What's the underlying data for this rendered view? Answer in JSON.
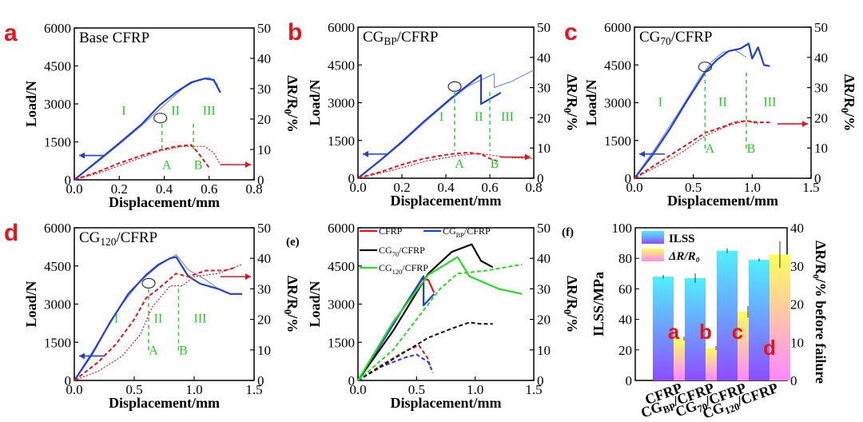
{
  "colors": {
    "blue": "#1f3fd8",
    "red": "#e8141c",
    "black": "#111111",
    "green": "#22dd22",
    "mid_green": "#33cc33",
    "axis": "#000000",
    "grad_top": "#4ff0ff",
    "grad_bottom": "#8c4dff",
    "pink_top": "#ffff55",
    "pink_bottom": "#ff88ff"
  },
  "common": {
    "xlabel": "Displacement/mm",
    "ylabel": "Load/N",
    "y2label": "ΔR/R₀/%"
  },
  "panels": [
    {
      "letter": "a",
      "title": "Base CFRP",
      "xlim": [
        0,
        0.8
      ],
      "xticks": [
        "0.0",
        "0.2",
        "0.4",
        "0.6",
        "0.8"
      ],
      "ylim": [
        0,
        6000
      ],
      "yticks": [
        "0",
        "1500",
        "3000",
        "4500",
        "6000"
      ],
      "y2lim": [
        0,
        50
      ],
      "y2ticks": [
        "0",
        "10",
        "20",
        "30",
        "40",
        "50"
      ],
      "regions": [
        "I",
        "II",
        "III"
      ],
      "points": [
        "A",
        "B"
      ],
      "load_main": [
        [
          0,
          0
        ],
        [
          0.1,
          720
        ],
        [
          0.2,
          1450
        ],
        [
          0.3,
          2200
        ],
        [
          0.38,
          2950
        ],
        [
          0.45,
          3450
        ],
        [
          0.52,
          3850
        ],
        [
          0.58,
          4000
        ],
        [
          0.62,
          3950
        ],
        [
          0.65,
          3450
        ]
      ],
      "load_second": [
        [
          0,
          0
        ],
        [
          0.1,
          680
        ],
        [
          0.2,
          1400
        ],
        [
          0.3,
          2150
        ],
        [
          0.4,
          2950
        ],
        [
          0.48,
          3600
        ],
        [
          0.55,
          3950
        ],
        [
          0.6,
          4050
        ],
        [
          0.64,
          3750
        ]
      ],
      "dr_main": [
        [
          0,
          0
        ],
        [
          0.1,
          2.5
        ],
        [
          0.2,
          5.5
        ],
        [
          0.3,
          8
        ],
        [
          0.38,
          9.8
        ],
        [
          0.45,
          11
        ],
        [
          0.52,
          11.5
        ],
        [
          0.55,
          9
        ],
        [
          0.58,
          6
        ],
        [
          0.6,
          4
        ]
      ],
      "dr_second": [
        [
          0,
          0
        ],
        [
          0.12,
          2.5
        ],
        [
          0.25,
          6
        ],
        [
          0.38,
          9.5
        ],
        [
          0.48,
          11
        ],
        [
          0.58,
          11
        ],
        [
          0.62,
          9
        ],
        [
          0.65,
          5
        ]
      ]
    },
    {
      "letter": "b",
      "title": "CG",
      "title_sub": "BP",
      "title_tail": "/CFRP",
      "xlim": [
        0,
        0.8
      ],
      "xticks": [
        "0.0",
        "0.2",
        "0.4",
        "0.6",
        "0.8"
      ],
      "ylim": [
        0,
        6000
      ],
      "yticks": [
        "0",
        "1500",
        "3000",
        "4500",
        "6000"
      ],
      "y2lim": [
        0,
        50
      ],
      "y2ticks": [
        "0",
        "10",
        "20",
        "30",
        "40",
        "50"
      ],
      "regions": [
        "I",
        "II",
        "III"
      ],
      "points": [
        "A",
        "B"
      ],
      "load_main": [
        [
          0,
          0
        ],
        [
          0.1,
          700
        ],
        [
          0.2,
          1450
        ],
        [
          0.3,
          2250
        ],
        [
          0.42,
          3150
        ],
        [
          0.5,
          3700
        ],
        [
          0.56,
          4100
        ],
        [
          0.56,
          2950
        ],
        [
          0.6,
          3150
        ],
        [
          0.65,
          3400
        ]
      ],
      "load_second": [
        [
          0,
          0
        ],
        [
          0.1,
          680
        ],
        [
          0.2,
          1400
        ],
        [
          0.3,
          2200
        ],
        [
          0.42,
          3100
        ],
        [
          0.5,
          3650
        ],
        [
          0.62,
          4150
        ],
        [
          0.62,
          3600
        ],
        [
          0.7,
          3850
        ],
        [
          0.8,
          4300
        ]
      ],
      "dr_main": [
        [
          0,
          0
        ],
        [
          0.1,
          2
        ],
        [
          0.2,
          4.5
        ],
        [
          0.3,
          6.5
        ],
        [
          0.42,
          8
        ],
        [
          0.5,
          8.5
        ],
        [
          0.56,
          8
        ],
        [
          0.6,
          6.5
        ],
        [
          0.64,
          5.5
        ]
      ],
      "dr_second": [
        [
          0,
          0
        ],
        [
          0.15,
          2.5
        ],
        [
          0.3,
          5.5
        ],
        [
          0.45,
          7.5
        ],
        [
          0.55,
          8.2
        ],
        [
          0.62,
          7.5
        ],
        [
          0.7,
          6.8
        ],
        [
          0.8,
          6.5
        ]
      ]
    },
    {
      "letter": "c",
      "title": "CG",
      "title_sub": "70",
      "title_tail": "/CFRP",
      "xlim": [
        0,
        1.5
      ],
      "xticks": [
        "0.0",
        "0.5",
        "1.0",
        "1.5"
      ],
      "ylim": [
        0,
        6000
      ],
      "yticks": [
        "0",
        "1500",
        "3000",
        "4500",
        "6000"
      ],
      "y2lim": [
        0,
        50
      ],
      "y2ticks": [
        "0",
        "10",
        "20",
        "30",
        "40",
        "50"
      ],
      "regions": [
        "I",
        "II",
        "III"
      ],
      "points": [
        "A",
        "B"
      ],
      "load_main": [
        [
          0,
          0
        ],
        [
          0.15,
          900
        ],
        [
          0.3,
          1950
        ],
        [
          0.45,
          3100
        ],
        [
          0.6,
          4200
        ],
        [
          0.7,
          4700
        ],
        [
          0.8,
          5050
        ],
        [
          0.9,
          5150
        ],
        [
          0.97,
          5350
        ],
        [
          1.0,
          4750
        ],
        [
          1.05,
          5200
        ],
        [
          1.1,
          4500
        ],
        [
          1.15,
          4450
        ]
      ],
      "load_second": [
        [
          0,
          0
        ],
        [
          0.2,
          1350
        ],
        [
          0.4,
          2800
        ],
        [
          0.55,
          3950
        ],
        [
          0.65,
          4600
        ],
        [
          0.75,
          5000
        ],
        [
          0.85,
          5100
        ],
        [
          0.95,
          4800
        ]
      ],
      "dr_main": [
        [
          0,
          0
        ],
        [
          0.2,
          5
        ],
        [
          0.4,
          10
        ],
        [
          0.6,
          15
        ],
        [
          0.75,
          17
        ],
        [
          0.85,
          18.5
        ],
        [
          0.95,
          19
        ],
        [
          1.05,
          18.5
        ],
        [
          1.15,
          18.5
        ]
      ],
      "dr_second": [
        [
          0,
          0
        ],
        [
          0.2,
          4
        ],
        [
          0.4,
          8.5
        ],
        [
          0.6,
          14
        ],
        [
          0.8,
          17.5
        ],
        [
          0.95,
          19
        ],
        [
          1.05,
          18
        ]
      ]
    },
    {
      "letter": "d",
      "title": "CG",
      "title_sub": "120",
      "title_tail": "/CFRP",
      "xlim": [
        0,
        1.5
      ],
      "xticks": [
        "0.0",
        "0.5",
        "1.0",
        "1.5"
      ],
      "ylim": [
        0,
        6000
      ],
      "yticks": [
        "0",
        "1500",
        "3000",
        "4500",
        "6000"
      ],
      "y2lim": [
        0,
        50
      ],
      "y2ticks": [
        "0",
        "10",
        "20",
        "30",
        "40",
        "50"
      ],
      "regions": [
        "I",
        "II",
        "III"
      ],
      "points": [
        "A",
        "B"
      ],
      "load_main": [
        [
          0,
          0
        ],
        [
          0.15,
          1050
        ],
        [
          0.3,
          2300
        ],
        [
          0.45,
          3400
        ],
        [
          0.6,
          4150
        ],
        [
          0.7,
          4550
        ],
        [
          0.8,
          4800
        ],
        [
          0.85,
          4850
        ],
        [
          0.95,
          4100
        ],
        [
          1.05,
          3800
        ],
        [
          1.2,
          3600
        ],
        [
          1.3,
          3400
        ],
        [
          1.4,
          3400
        ]
      ],
      "load_second": [
        [
          0,
          0
        ],
        [
          0.2,
          1500
        ],
        [
          0.4,
          3000
        ],
        [
          0.55,
          3900
        ],
        [
          0.7,
          4500
        ],
        [
          0.85,
          4950
        ],
        [
          0.95,
          4350
        ],
        [
          1.1,
          3950
        ],
        [
          1.2,
          3600
        ]
      ],
      "dr_main": [
        [
          0,
          0
        ],
        [
          0.2,
          6
        ],
        [
          0.35,
          12
        ],
        [
          0.5,
          20
        ],
        [
          0.6,
          27
        ],
        [
          0.7,
          30
        ],
        [
          0.85,
          35
        ],
        [
          0.95,
          34
        ],
        [
          1.1,
          36
        ],
        [
          1.25,
          36
        ],
        [
          1.35,
          37
        ]
      ],
      "dr_second": [
        [
          0,
          0
        ],
        [
          0.2,
          3
        ],
        [
          0.4,
          8
        ],
        [
          0.55,
          15
        ],
        [
          0.65,
          24
        ],
        [
          0.8,
          31
        ],
        [
          0.9,
          31
        ],
        [
          1.0,
          34
        ],
        [
          1.2,
          35
        ],
        [
          1.4,
          38
        ]
      ]
    },
    {
      "letter": "(e)",
      "xlim": [
        0,
        1.5
      ],
      "xticks": [
        "0.0",
        "0.5",
        "1.0",
        "1.5"
      ],
      "ylim": [
        0,
        6000
      ],
      "yticks": [
        "0",
        "1500",
        "3000",
        "4500",
        "6000"
      ],
      "y2lim": [
        0,
        50
      ],
      "y2ticks": [
        "0",
        "10",
        "20",
        "30",
        "40",
        "50"
      ],
      "legend": [
        "CFRP",
        "CG",
        "CG",
        "CG"
      ],
      "legend_subs": [
        "",
        "BP",
        "70",
        "120"
      ],
      "series": [
        {
          "name": "CFRP",
          "color": "#e8141c",
          "load": [
            [
              0,
              0
            ],
            [
              0.2,
              1450
            ],
            [
              0.4,
              2950
            ],
            [
              0.55,
              4000
            ],
            [
              0.6,
              3950
            ],
            [
              0.65,
              3450
            ]
          ],
          "dr": [
            [
              0,
              0
            ],
            [
              0.2,
              5
            ],
            [
              0.4,
              9.5
            ],
            [
              0.52,
              11.5
            ],
            [
              0.6,
              7
            ],
            [
              0.62,
              4
            ]
          ]
        },
        {
          "name": "CG_BP/CFRP",
          "color": "#1f3fd8",
          "load": [
            [
              0,
              0
            ],
            [
              0.2,
              1450
            ],
            [
              0.4,
              2950
            ],
            [
              0.56,
              4100
            ],
            [
              0.56,
              2950
            ],
            [
              0.65,
              3400
            ]
          ],
          "dr": [
            [
              0,
              0
            ],
            [
              0.2,
              4.5
            ],
            [
              0.4,
              7.5
            ],
            [
              0.5,
              8.5
            ],
            [
              0.6,
              6
            ],
            [
              0.64,
              2.5
            ]
          ]
        },
        {
          "name": "CG_70/CFRP",
          "color": "#111111",
          "load": [
            [
              0,
              0
            ],
            [
              0.3,
              1950
            ],
            [
              0.6,
              4200
            ],
            [
              0.8,
              5050
            ],
            [
              0.97,
              5350
            ],
            [
              1.05,
              4700
            ],
            [
              1.15,
              4450
            ]
          ],
          "dr": [
            [
              0,
              0
            ],
            [
              0.3,
              7
            ],
            [
              0.6,
              14
            ],
            [
              0.8,
              17
            ],
            [
              0.95,
              19
            ],
            [
              1.05,
              18.5
            ],
            [
              1.15,
              18.5
            ]
          ]
        },
        {
          "name": "CG_120/CFRP",
          "color": "#22dd22",
          "load": [
            [
              0,
              0
            ],
            [
              0.3,
              2300
            ],
            [
              0.6,
              4150
            ],
            [
              0.85,
              4850
            ],
            [
              0.95,
              4100
            ],
            [
              1.2,
              3600
            ],
            [
              1.4,
              3400
            ]
          ],
          "dr": [
            [
              0,
              0
            ],
            [
              0.3,
              10
            ],
            [
              0.5,
              20
            ],
            [
              0.7,
              30
            ],
            [
              0.85,
              35
            ],
            [
              1.1,
              36
            ],
            [
              1.4,
              38
            ]
          ]
        }
      ]
    },
    {
      "letter": "(f)",
      "ylabel": "ILSS/MPa",
      "y2label": "ΔR/R₀/% before failure",
      "ylim": [
        0,
        100
      ],
      "yticks": [
        "0",
        "20",
        "40",
        "60",
        "80",
        "100"
      ],
      "y2lim": [
        0,
        40
      ],
      "y2ticks": [
        "0",
        "10",
        "20",
        "30",
        "40"
      ],
      "legend": [
        "ILSS",
        "ΔR/R₀"
      ],
      "categories": [
        "CFRP",
        "CG",
        "CG",
        "CG"
      ],
      "category_subs": [
        "",
        "BP",
        "70",
        "120"
      ],
      "category_tail": [
        "",
        "/CFRP",
        "/CFRP",
        "/CFRP"
      ],
      "ilss": [
        68,
        67,
        85,
        79
      ],
      "ilss_err": [
        1.2,
        3,
        1.5,
        1
      ],
      "dr": [
        11,
        8.5,
        18,
        33
      ],
      "dr_err": [
        0.5,
        0.5,
        1.5,
        3.5
      ],
      "bar_letters": [
        "a",
        "b",
        "c",
        "d"
      ]
    }
  ]
}
